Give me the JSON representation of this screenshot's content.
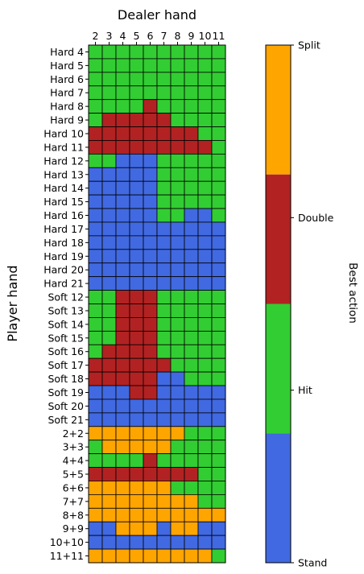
{
  "chart_data": {
    "type": "heatmap",
    "title": "",
    "xlabel": "Dealer hand",
    "ylabel": "Player hand",
    "x_tick_labels": [
      "2",
      "3",
      "4",
      "5",
      "6",
      "7",
      "8",
      "9",
      "10",
      "11"
    ],
    "y_tick_labels": [
      "Hard 4",
      "Hard 5",
      "Hard 6",
      "Hard 7",
      "Hard 8",
      "Hard 9",
      "Hard 10",
      "Hard 11",
      "Hard 12",
      "Hard 13",
      "Hard 14",
      "Hard 15",
      "Hard 16",
      "Hard 17",
      "Hard 18",
      "Hard 19",
      "Hard 20",
      "Hard 21",
      "Soft 12",
      "Soft 13",
      "Soft 14",
      "Soft 15",
      "Soft 16",
      "Soft 17",
      "Soft 18",
      "Soft 19",
      "Soft 20",
      "Soft 21",
      "2+2",
      "3+3",
      "4+4",
      "5+5",
      "6+6",
      "7+7",
      "8+8",
      "9+9",
      "10+10",
      "11+11"
    ],
    "legend_codes": "S = Stand, H = Hit, D = Double, P = Split",
    "grid": [
      "HHHHHHHHHH",
      "HHHHHHHHHH",
      "HHHHHHHHHH",
      "HHHHHHHHHH",
      "HHHHDHHHHH",
      "HDDDDDHHHH",
      "DDDDDDDDHH",
      "DDDDDDDDDH",
      "HHSSSHHHHH",
      "SSSSSHHHHH",
      "SSSSSHHHHH",
      "SSSSSHHHHH",
      "SSSSSHHSSH",
      "SSSSSSSSSS",
      "SSSSSSSSSS",
      "SSSSSSSSSS",
      "SSSSSSSSSS",
      "SSSSSSSSSS",
      "HHDDDHHHHH",
      "HHDDDHHHHH",
      "HHDDDHHHHH",
      "HHDDDHHHHH",
      "HDDDDHHHHH",
      "DDDDDDHHHH",
      "DDDDDSSHHH",
      "SSSDDSSSSS",
      "SSSSSSSSSS",
      "SSSSSSSSSS",
      "PPPPPPPHHH",
      "HPPPPPHHHH",
      "HHHHDHHHHH",
      "DDDDDDDDHH",
      "PPPPPPHHHH",
      "PPPPPPPPHH",
      "PPPPPPPPPP",
      "SSPPPSPPSS",
      "SSSSSSSSSS",
      "PPPPPPPPPH"
    ],
    "colorbar": {
      "title": "Best action",
      "tick_labels": [
        "Stand",
        "Hit",
        "Double",
        "Split"
      ],
      "colors": [
        "#4169e1",
        "#32cd32",
        "#b22222",
        "#ffa500"
      ]
    }
  }
}
